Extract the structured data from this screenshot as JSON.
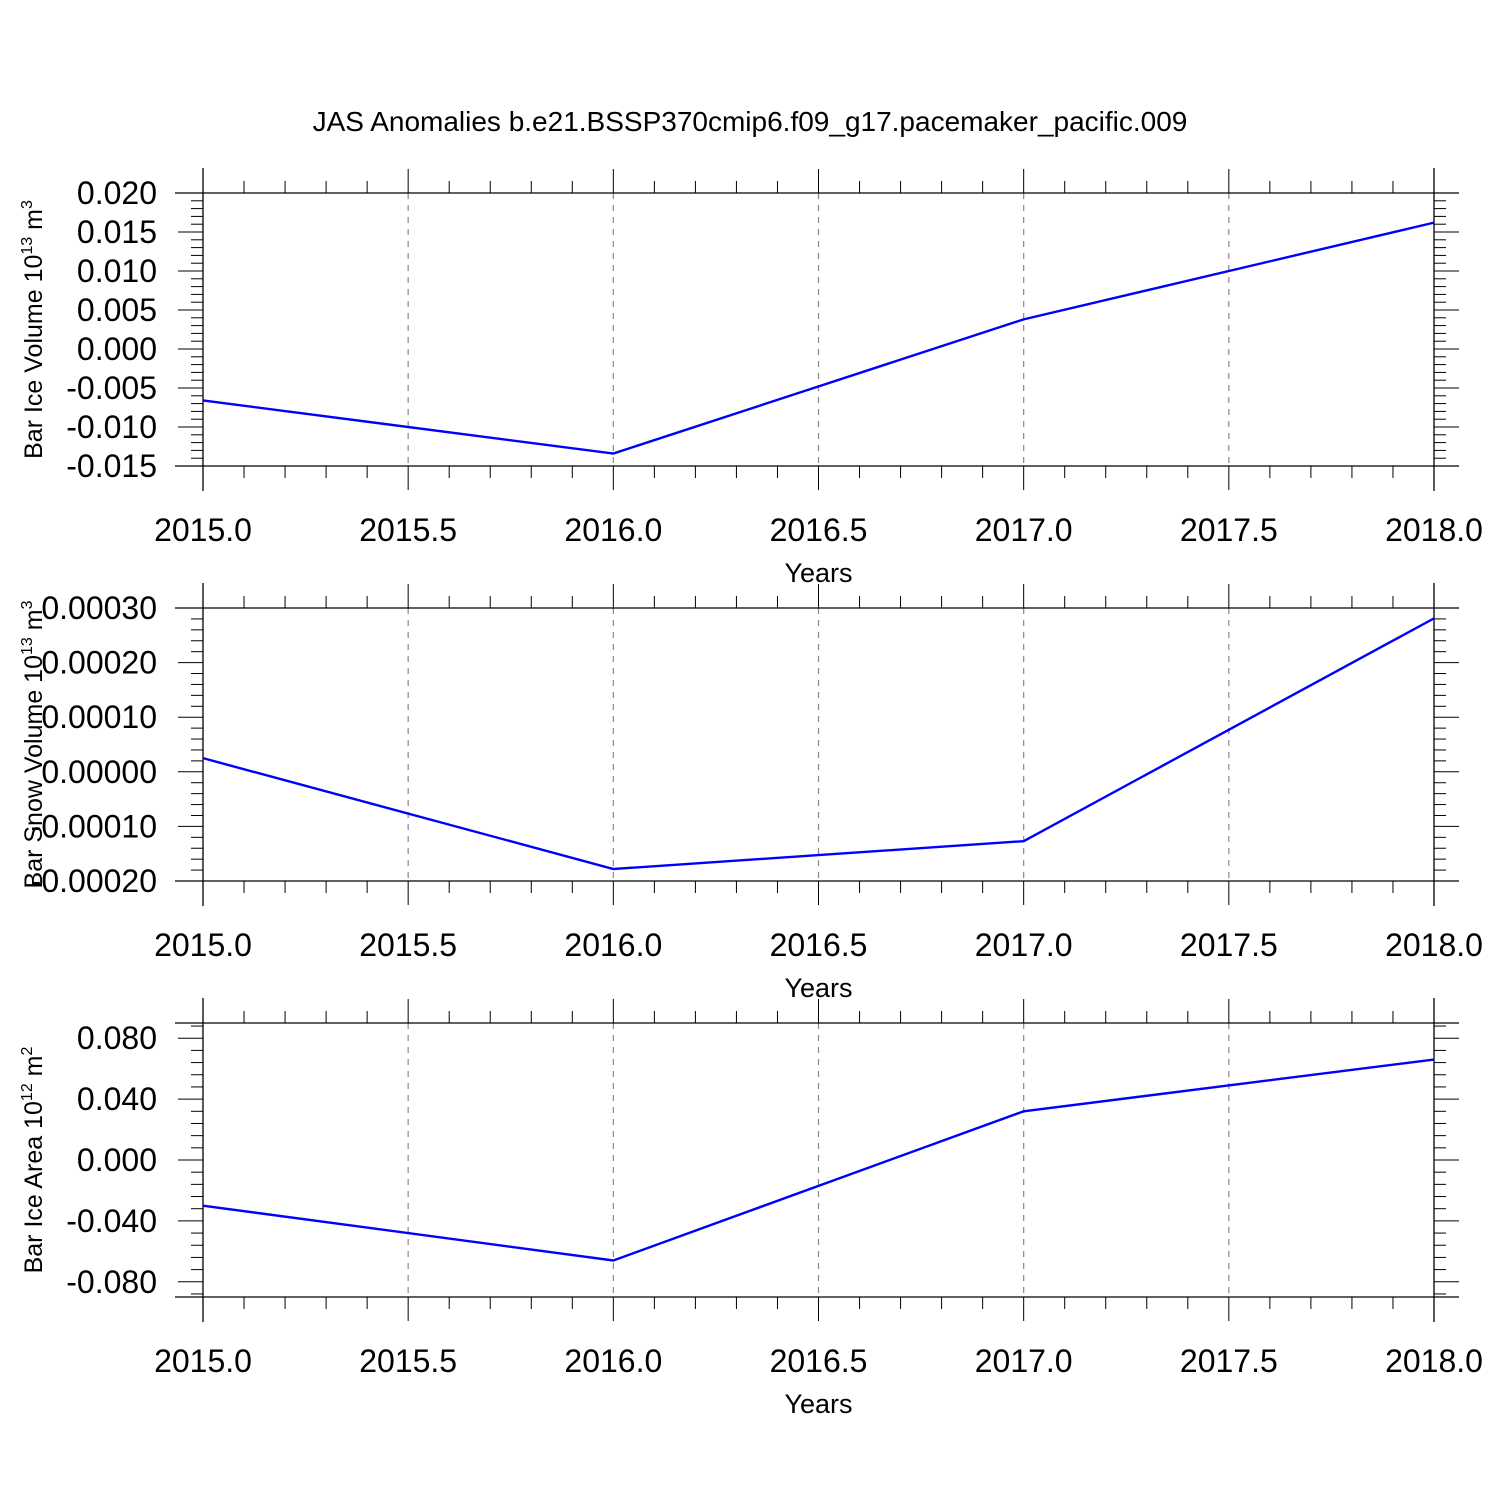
{
  "figure_title": "JAS Anomalies b.e21.BSSP370cmip6.f09_g17.pacemaker_pacific.009",
  "line_color": "#0000ff",
  "grid_color": "#888888",
  "chart_data": [
    {
      "type": "line",
      "x": [
        2015.0,
        2016.0,
        2017.0,
        2018.0
      ],
      "y": [
        -0.0066,
        -0.0134,
        0.0038,
        0.0162
      ],
      "xlim": [
        2015.0,
        2018.0
      ],
      "ylim": [
        -0.015,
        0.02
      ],
      "xticks": [
        2015.0,
        2015.5,
        2016.0,
        2016.5,
        2017.0,
        2017.5,
        2018.0
      ],
      "xtick_labels": [
        "2015.0",
        "2015.5",
        "2016.0",
        "2016.5",
        "2017.0",
        "2017.5",
        "2018.0"
      ],
      "yticks": [
        -0.015,
        -0.01,
        -0.005,
        0.0,
        0.005,
        0.01,
        0.015,
        0.02
      ],
      "ytick_labels": [
        "-0.015",
        "-0.010",
        "-0.005",
        "0.000",
        "0.005",
        "0.010",
        "0.015",
        "0.020"
      ],
      "xlabel": "Years",
      "ylabel": {
        "main": "Bar Ice Volume 10",
        "sup": "13",
        "unit": " m",
        "unit_sup": "3"
      },
      "grid": "vertical dashed at x ticks"
    },
    {
      "type": "line",
      "x": [
        2015.0,
        2016.0,
        2017.0,
        2018.0
      ],
      "y": [
        2.5e-05,
        -0.000178,
        -0.000127,
        0.000281
      ],
      "xlim": [
        2015.0,
        2018.0
      ],
      "ylim": [
        -0.0002,
        0.0003
      ],
      "xticks": [
        2015.0,
        2015.5,
        2016.0,
        2016.5,
        2017.0,
        2017.5,
        2018.0
      ],
      "xtick_labels": [
        "2015.0",
        "2015.5",
        "2016.0",
        "2016.5",
        "2017.0",
        "2017.5",
        "2018.0"
      ],
      "yticks": [
        -0.0002,
        -0.0001,
        0.0,
        0.0001,
        0.0002,
        0.0003
      ],
      "ytick_labels": [
        "-0.00020",
        "-0.00010",
        "0.00000",
        "0.00010",
        "0.00020",
        "0.00030"
      ],
      "xlabel": "Years",
      "ylabel": {
        "main": "Bar Snow Volume 10",
        "sup": "13",
        "unit": " m",
        "unit_sup": "3"
      },
      "grid": "vertical dashed at x ticks"
    },
    {
      "type": "line",
      "x": [
        2015.0,
        2016.0,
        2017.0,
        2018.0
      ],
      "y": [
        -0.03,
        -0.066,
        0.032,
        0.066
      ],
      "xlim": [
        2015.0,
        2018.0
      ],
      "ylim": [
        -0.09,
        0.09
      ],
      "xticks": [
        2015.0,
        2015.5,
        2016.0,
        2016.5,
        2017.0,
        2017.5,
        2018.0
      ],
      "xtick_labels": [
        "2015.0",
        "2015.5",
        "2016.0",
        "2016.5",
        "2017.0",
        "2017.5",
        "2018.0"
      ],
      "yticks": [
        -0.08,
        -0.04,
        0.0,
        0.04,
        0.08
      ],
      "ytick_labels": [
        "-0.080",
        "-0.040",
        "0.000",
        "0.040",
        "0.080"
      ],
      "xlabel": "Years",
      "ylabel": {
        "main": "Bar Ice Area 10",
        "sup": "12",
        "unit": " m",
        "unit_sup": "2"
      },
      "grid": "vertical dashed at x ticks"
    }
  ]
}
